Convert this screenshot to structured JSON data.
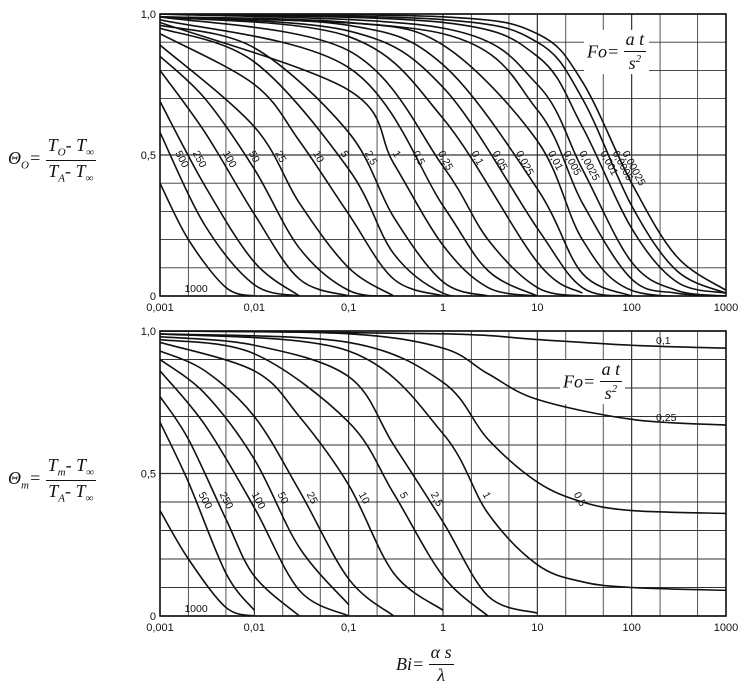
{
  "chart_data": [
    {
      "type": "line",
      "panel": "top",
      "x_scale": "log",
      "xlim": [
        0.001,
        1000
      ],
      "ylim": [
        0,
        1
      ],
      "x_tick_labels": [
        "0,001",
        "0,01",
        "0,1",
        "1",
        "10",
        "100",
        "1000"
      ],
      "y_tick_labels": [
        "0",
        "0,5",
        "1,0"
      ],
      "grid": true,
      "ylabel": "Θ_O = (T_O − T_∞) / (T_A − T_∞)",
      "parameter_label": "Fo = a t / s²",
      "series": [
        {
          "name": "0,00025",
          "x": [
            0.001,
            1,
            10,
            30,
            100,
            300,
            1000
          ],
          "y": [
            1.0,
            0.99,
            0.93,
            0.76,
            0.4,
            0.14,
            0.02
          ]
        },
        {
          "name": "0,0005",
          "x": [
            0.001,
            1,
            10,
            30,
            100,
            300,
            1000
          ],
          "y": [
            1.0,
            0.98,
            0.9,
            0.7,
            0.32,
            0.09,
            0.01
          ]
        },
        {
          "name": "0,001",
          "x": [
            0.001,
            1,
            10,
            30,
            100,
            300,
            1000
          ],
          "y": [
            1.0,
            0.97,
            0.85,
            0.6,
            0.24,
            0.05,
            0.01
          ]
        },
        {
          "name": "0,0025",
          "x": [
            0.001,
            1,
            10,
            30,
            100,
            300,
            1000
          ],
          "y": [
            1.0,
            0.95,
            0.75,
            0.45,
            0.12,
            0.02,
            0.0
          ]
        },
        {
          "name": "0,005",
          "x": [
            0.001,
            1,
            10,
            30,
            100,
            300,
            1000
          ],
          "y": [
            0.99,
            0.93,
            0.66,
            0.33,
            0.06,
            0.01,
            0.0
          ]
        },
        {
          "name": "0,01",
          "x": [
            0.001,
            0.1,
            1,
            10,
            30,
            100,
            1000
          ],
          "y": [
            0.99,
            0.97,
            0.89,
            0.55,
            0.2,
            0.02,
            0.0
          ]
        },
        {
          "name": "0,025",
          "x": [
            0.001,
            0.1,
            1,
            10,
            30,
            100
          ],
          "y": [
            0.99,
            0.96,
            0.82,
            0.38,
            0.08,
            0.0
          ]
        },
        {
          "name": "0,05",
          "x": [
            0.001,
            0.1,
            1,
            10,
            30,
            100
          ],
          "y": [
            0.99,
            0.94,
            0.74,
            0.24,
            0.03,
            0.0
          ]
        },
        {
          "name": "0,1",
          "x": [
            0.001,
            0.1,
            1,
            10,
            30
          ],
          "y": [
            0.99,
            0.92,
            0.63,
            0.12,
            0.01
          ]
        },
        {
          "name": "0,25",
          "x": [
            0.001,
            0.1,
            1,
            3,
            10,
            30
          ],
          "y": [
            0.99,
            0.87,
            0.46,
            0.2,
            0.03,
            0.0
          ]
        },
        {
          "name": "0,5",
          "x": [
            0.001,
            0.1,
            1,
            3,
            10
          ],
          "y": [
            0.98,
            0.81,
            0.32,
            0.09,
            0.0
          ]
        },
        {
          "name": "1",
          "x": [
            0.001,
            0.1,
            0.3,
            1,
            3,
            10
          ],
          "y": [
            0.97,
            0.73,
            0.47,
            0.18,
            0.03,
            0.0
          ]
        },
        {
          "name": "2,5",
          "x": [
            0.001,
            0.01,
            0.1,
            0.3,
            1,
            3
          ],
          "y": [
            0.96,
            0.88,
            0.58,
            0.28,
            0.05,
            0.0
          ]
        },
        {
          "name": "5",
          "x": [
            0.001,
            0.01,
            0.1,
            0.3,
            1,
            3
          ],
          "y": [
            0.95,
            0.83,
            0.45,
            0.15,
            0.01,
            0.0
          ]
        },
        {
          "name": "10",
          "x": [
            0.001,
            0.01,
            0.03,
            0.1,
            0.3,
            1
          ],
          "y": [
            0.93,
            0.75,
            0.55,
            0.29,
            0.06,
            0.0
          ]
        },
        {
          "name": "25",
          "x": [
            0.001,
            0.01,
            0.03,
            0.1,
            0.3
          ],
          "y": [
            0.89,
            0.6,
            0.33,
            0.1,
            0.0
          ]
        },
        {
          "name": "50",
          "x": [
            0.001,
            0.003,
            0.01,
            0.03,
            0.1,
            0.3
          ],
          "y": [
            0.85,
            0.7,
            0.45,
            0.17,
            0.02,
            0.0
          ]
        },
        {
          "name": "100",
          "x": [
            0.001,
            0.003,
            0.01,
            0.03,
            0.1
          ],
          "y": [
            0.8,
            0.58,
            0.29,
            0.06,
            0.0
          ]
        },
        {
          "name": "250",
          "x": [
            0.001,
            0.003,
            0.01,
            0.03
          ],
          "y": [
            0.69,
            0.39,
            0.12,
            0.0
          ]
        },
        {
          "name": "500",
          "x": [
            0.001,
            0.003,
            0.01,
            0.03
          ],
          "y": [
            0.58,
            0.25,
            0.04,
            0.0
          ]
        },
        {
          "name": "1000",
          "x": [
            0.001,
            0.002,
            0.005,
            0.01
          ],
          "y": [
            0.4,
            0.2,
            0.03,
            0.0
          ]
        }
      ]
    },
    {
      "type": "line",
      "panel": "bottom",
      "x_scale": "log",
      "xlim": [
        0.001,
        1000
      ],
      "ylim": [
        0,
        1
      ],
      "x_tick_labels": [
        "0,001",
        "0,01",
        "0,1",
        "1",
        "10",
        "100",
        "1000"
      ],
      "y_tick_labels": [
        "0",
        "0,5",
        "1,0"
      ],
      "grid": true,
      "xlabel": "Bi = α s / λ",
      "ylabel": "Θ_m = (T_m − T_∞) / (T_A − T_∞)",
      "parameter_label": "Fo = a t / s²",
      "series": [
        {
          "name": "0,1",
          "x": [
            0.001,
            1,
            10,
            100,
            1000
          ],
          "y": [
            1.0,
            0.99,
            0.97,
            0.95,
            0.94
          ]
        },
        {
          "name": "0,25",
          "x": [
            0.001,
            0.1,
            1,
            3,
            10,
            100,
            1000
          ],
          "y": [
            1.0,
            0.99,
            0.94,
            0.85,
            0.76,
            0.69,
            0.67
          ]
        },
        {
          "name": "0,5",
          "x": [
            0.001,
            0.1,
            1,
            3,
            10,
            30,
            100,
            1000
          ],
          "y": [
            0.99,
            0.96,
            0.82,
            0.62,
            0.47,
            0.4,
            0.37,
            0.36
          ]
        },
        {
          "name": "1",
          "x": [
            0.001,
            0.1,
            1,
            3,
            10,
            30,
            100,
            1000
          ],
          "y": [
            0.99,
            0.93,
            0.64,
            0.36,
            0.18,
            0.12,
            0.1,
            0.09
          ]
        },
        {
          "name": "2,5",
          "x": [
            0.001,
            0.01,
            0.1,
            0.3,
            1,
            3,
            10
          ],
          "y": [
            0.98,
            0.95,
            0.84,
            0.6,
            0.33,
            0.07,
            0.01
          ]
        },
        {
          "name": "5",
          "x": [
            0.001,
            0.01,
            0.1,
            0.3,
            1,
            3
          ],
          "y": [
            0.97,
            0.92,
            0.68,
            0.43,
            0.14,
            0.0
          ]
        },
        {
          "name": "10",
          "x": [
            0.001,
            0.01,
            0.03,
            0.1,
            0.3,
            1
          ],
          "y": [
            0.96,
            0.86,
            0.7,
            0.46,
            0.15,
            0.02
          ]
        },
        {
          "name": "25",
          "x": [
            0.001,
            0.003,
            0.01,
            0.03,
            0.1,
            0.3
          ],
          "y": [
            0.93,
            0.86,
            0.7,
            0.44,
            0.13,
            0.0
          ]
        },
        {
          "name": "50",
          "x": [
            0.001,
            0.003,
            0.01,
            0.03,
            0.1
          ],
          "y": [
            0.9,
            0.78,
            0.55,
            0.24,
            0.04
          ]
        },
        {
          "name": "100",
          "x": [
            0.001,
            0.003,
            0.01,
            0.03,
            0.1
          ],
          "y": [
            0.86,
            0.67,
            0.38,
            0.09,
            0.0
          ]
        },
        {
          "name": "250",
          "x": [
            0.001,
            0.002,
            0.005,
            0.01,
            0.03
          ],
          "y": [
            0.77,
            0.62,
            0.34,
            0.14,
            0.0
          ]
        },
        {
          "name": "500",
          "x": [
            0.001,
            0.002,
            0.005,
            0.01
          ],
          "y": [
            0.68,
            0.47,
            0.15,
            0.02
          ]
        },
        {
          "name": "1000",
          "x": [
            0.001,
            0.002,
            0.005,
            0.01
          ],
          "y": [
            0.37,
            0.2,
            0.03,
            0.0
          ]
        }
      ]
    }
  ],
  "formulas": {
    "top_theta": "Θ",
    "top_theta_sub": "O",
    "top_num_a": "T",
    "top_num_a_sub": "O",
    "top_num_b": "- T",
    "top_den_a": "T",
    "top_den_a_sub": "A",
    "top_den_b": "- T",
    "inf": "∞",
    "bot_theta": "Θ",
    "bot_theta_sub": "m",
    "bot_num_a": "T",
    "bot_num_a_sub": "m",
    "bot_num_b": "- T",
    "fo_lhs": "Fo",
    "fo_num": "a t",
    "fo_den": "s",
    "fo_den_sup": "2",
    "bi_lhs": "Bi",
    "bi_num": "α s",
    "bi_den": "λ",
    "eq": "="
  }
}
